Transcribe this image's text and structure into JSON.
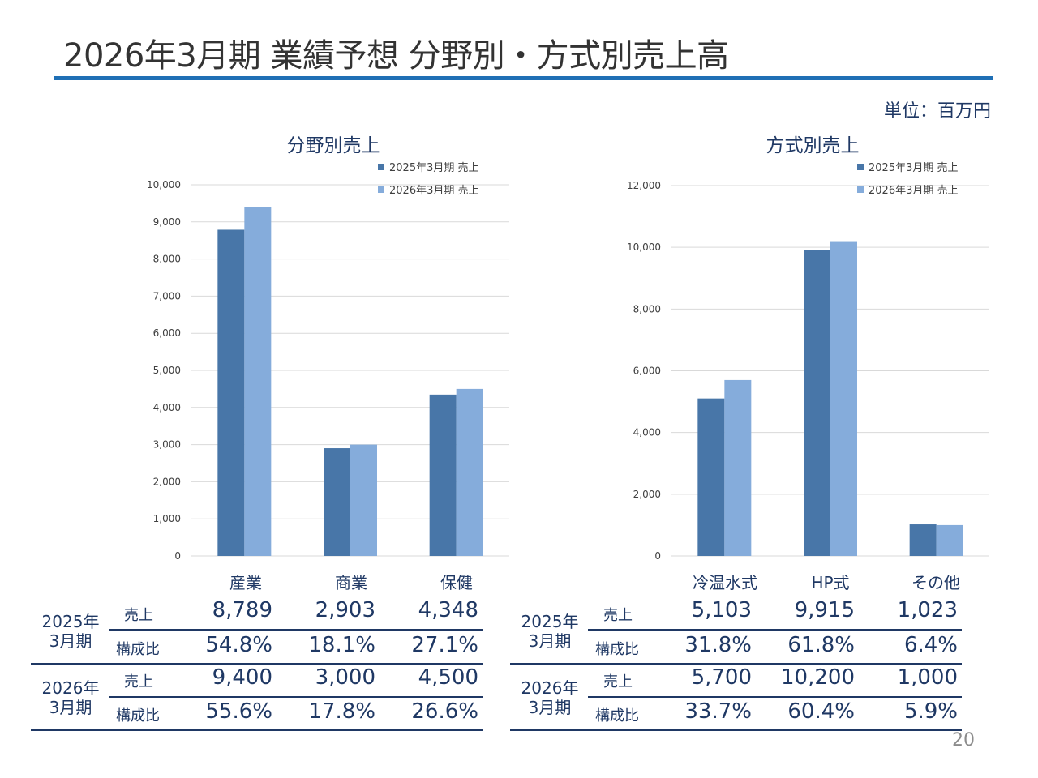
{
  "page": {
    "title": "2026年3月期 業績予想 分野別・方式別売上高",
    "unit": "単位：百万円",
    "page_number": "20"
  },
  "colors": {
    "accent": "#1f6fb5",
    "series_2025": "#4876a8",
    "series_2026": "#85acdb",
    "text": "#1f3864"
  },
  "chart_data": [
    {
      "type": "bar",
      "title": "分野別売上",
      "categories": [
        "産業",
        "商業",
        "保健"
      ],
      "series": [
        {
          "name": "2025年3月期 売上",
          "values": [
            8789,
            2903,
            4348
          ]
        },
        {
          "name": "2026年3月期 売上",
          "values": [
            9400,
            3000,
            4500
          ]
        }
      ],
      "ylim": [
        0,
        10000
      ],
      "yticks": [
        0,
        1000,
        2000,
        3000,
        4000,
        5000,
        6000,
        7000,
        8000,
        9000,
        10000
      ],
      "ytick_labels": [
        "0",
        "1,000",
        "2,000",
        "3,000",
        "4,000",
        "5,000",
        "6,000",
        "7,000",
        "8,000",
        "9,000",
        "10,000"
      ],
      "grid": true,
      "legend": "top-right"
    },
    {
      "type": "bar",
      "title": "方式別売上",
      "categories": [
        "冷温水式",
        "HP式",
        "その他"
      ],
      "series": [
        {
          "name": "2025年3月期 売上",
          "values": [
            5103,
            9915,
            1023
          ]
        },
        {
          "name": "2026年3月期 売上",
          "values": [
            5700,
            10200,
            1000
          ]
        }
      ],
      "ylim": [
        0,
        12000
      ],
      "yticks": [
        0,
        2000,
        4000,
        6000,
        8000,
        10000,
        12000
      ],
      "ytick_labels": [
        "0",
        "2,000",
        "4,000",
        "6,000",
        "8,000",
        "10,000",
        "12,000"
      ],
      "grid": true,
      "legend": "top-right"
    }
  ],
  "tables": [
    {
      "groups": [
        {
          "period_line1": "2025年",
          "period_line2": "3月期",
          "rows": [
            {
              "label": "売上",
              "values": [
                "8,789",
                "2,903",
                "4,348"
              ]
            },
            {
              "label": "構成比",
              "values": [
                "54.8%",
                "18.1%",
                "27.1%"
              ]
            }
          ]
        },
        {
          "period_line1": "2026年",
          "period_line2": "3月期",
          "rows": [
            {
              "label": "売上",
              "values": [
                "9,400",
                "3,000",
                "4,500"
              ]
            },
            {
              "label": "構成比",
              "values": [
                "55.6%",
                "17.8%",
                "26.6%"
              ]
            }
          ]
        }
      ]
    },
    {
      "groups": [
        {
          "period_line1": "2025年",
          "period_line2": "3月期",
          "rows": [
            {
              "label": "売上",
              "values": [
                "5,103",
                "9,915",
                "1,023"
              ]
            },
            {
              "label": "構成比",
              "values": [
                "31.8%",
                "61.8%",
                "6.4%"
              ]
            }
          ]
        },
        {
          "period_line1": "2026年",
          "period_line2": "3月期",
          "rows": [
            {
              "label": "売上",
              "values": [
                "5,700",
                "10,200",
                "1,000"
              ]
            },
            {
              "label": "構成比",
              "values": [
                "33.7%",
                "60.4%",
                "5.9%"
              ]
            }
          ]
        }
      ]
    }
  ]
}
